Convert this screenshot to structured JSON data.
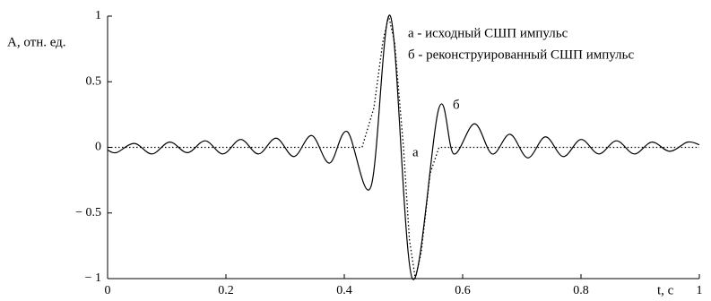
{
  "chart_data": {
    "type": "line",
    "ylabel": "A, отн. ед.",
    "xlabel": "t, c",
    "xlim": [
      0,
      1
    ],
    "ylim": [
      -1,
      1
    ],
    "xticks": [
      0,
      0.2,
      0.4,
      0.6,
      0.8,
      1
    ],
    "yticks": [
      {
        "value": -1,
        "label": "− 1"
      },
      {
        "value": -0.5,
        "label": "− 0.5"
      },
      0,
      0.5,
      1
    ],
    "series": [
      {
        "name": "б - реконструированный СШП импульс",
        "color": "#000000",
        "style": "solid",
        "x": [
          0,
          0.015,
          0.045,
          0.075,
          0.105,
          0.135,
          0.165,
          0.195,
          0.225,
          0.255,
          0.285,
          0.315,
          0.345,
          0.375,
          0.405,
          0.445,
          0.478,
          0.515,
          0.56,
          0.585,
          0.62,
          0.65,
          0.68,
          0.71,
          0.74,
          0.77,
          0.8,
          0.83,
          0.86,
          0.89,
          0.92,
          0.95,
          0.98,
          1
        ],
        "values": [
          -0.02,
          -0.04,
          0.03,
          -0.05,
          0.04,
          -0.04,
          0.05,
          -0.05,
          0.06,
          -0.05,
          0.07,
          -0.07,
          0.09,
          -0.12,
          0.12,
          -0.3,
          1,
          -1,
          0.3,
          -0.05,
          0.18,
          -0.05,
          0.1,
          -0.08,
          0.08,
          -0.07,
          0.06,
          -0.05,
          0.05,
          -0.05,
          0.04,
          -0.03,
          0.04,
          0.02
        ]
      },
      {
        "name": "а - исходный СШП импульс",
        "color": "#000000",
        "style": "dotted",
        "x": [
          0,
          0.43,
          0.45,
          0.465,
          0.475,
          0.485,
          0.5,
          0.51,
          0.52,
          0.53,
          0.545,
          0.56,
          1
        ],
        "values": [
          0,
          0,
          0.3,
          0.8,
          1,
          0.8,
          0,
          -0.7,
          -1,
          -0.8,
          -0.2,
          0,
          0
        ]
      }
    ],
    "annotations": [
      "а",
      "б"
    ]
  }
}
